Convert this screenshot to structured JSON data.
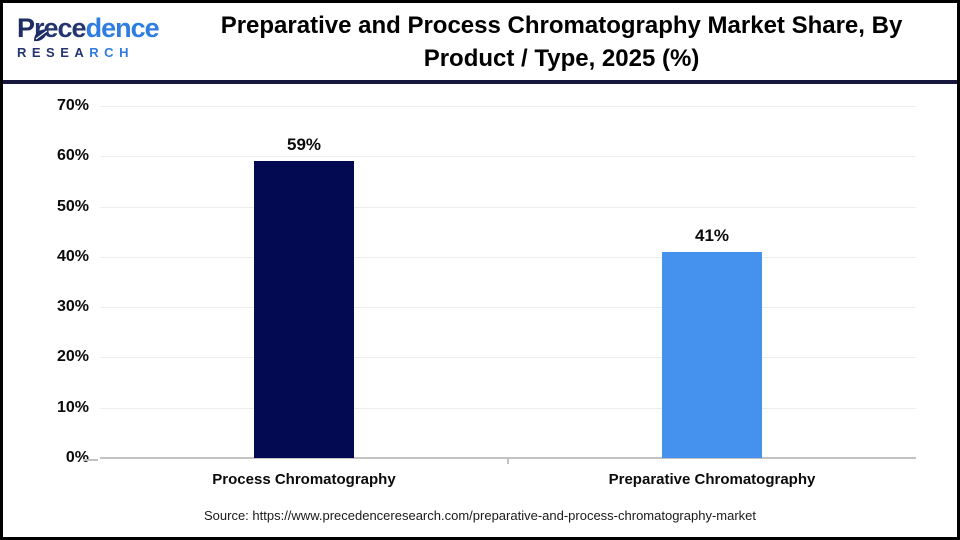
{
  "header": {
    "logo": {
      "p": "P",
      "name_dark": "rece",
      "name_light": "dence",
      "sub_dark": "RESEA",
      "sub_light": "RCH"
    },
    "title_line1": "Preparative and Process Chromatography Market Share, By",
    "title_line2": "Product / Type, 2025 (%)"
  },
  "chart_data": {
    "type": "bar",
    "title": "Preparative and Process Chromatography Market Share, By Product / Type, 2025 (%)",
    "categories": [
      "Process Chromatography",
      "Preparative Chromatography"
    ],
    "values": [
      59,
      41
    ],
    "value_labels": [
      "59%",
      "41%"
    ],
    "bar_colors": [
      "#030a52",
      "#4591ee"
    ],
    "xlabel": "",
    "ylabel": "",
    "ylim": [
      0,
      70
    ],
    "ytick_step": 10,
    "ytick_labels": [
      "0%",
      "10%",
      "20%",
      "30%",
      "40%",
      "50%",
      "60%",
      "70%"
    ],
    "grid": true,
    "legend": "none"
  },
  "colors": {
    "bar_process": "#030a52",
    "bar_preparative": "#4591ee",
    "header_divider": "#15173f",
    "gridline": "#eeeeee",
    "axis": "#c2c2c2",
    "logo_navy": "#24356f",
    "logo_blue": "#2f7de0"
  },
  "footer": {
    "source": "Source: https://www.precedenceresearch.com/preparative-and-process-chromatography-market"
  }
}
